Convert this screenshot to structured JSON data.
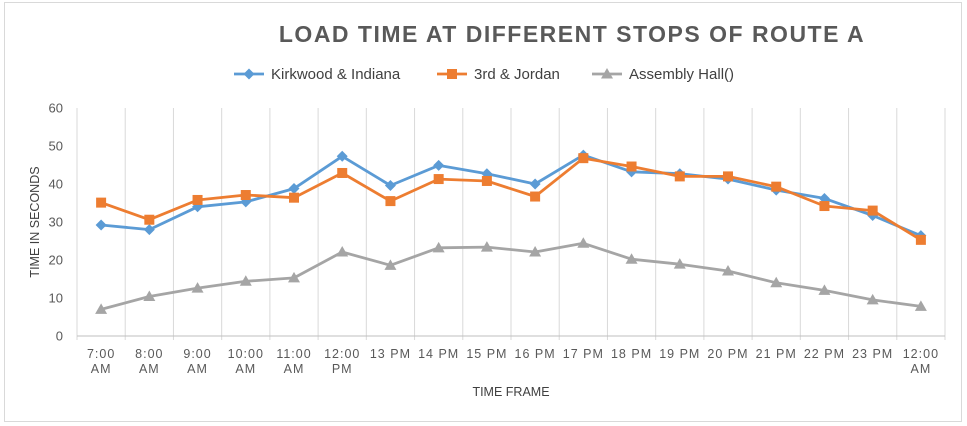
{
  "chart_data": {
    "type": "line",
    "title": "LOAD TIME AT DIFFERENT STOPS OF ROUTE A",
    "xlabel": "TIME FRAME",
    "ylabel": "TIME IN SECONDS",
    "ylim": [
      0,
      60
    ],
    "yticks": [
      "0",
      "10",
      "20",
      "30",
      "40",
      "50",
      "60"
    ],
    "grid": "vertical",
    "legend_position": "top",
    "categories": [
      [
        "7:00",
        "AM"
      ],
      [
        "8:00",
        "AM"
      ],
      [
        "9:00",
        "AM"
      ],
      [
        "10:00",
        "AM"
      ],
      [
        "11:00",
        "AM"
      ],
      [
        "12:00",
        "PM"
      ],
      [
        "13 PM"
      ],
      [
        "14 PM"
      ],
      [
        "15 PM"
      ],
      [
        "16 PM"
      ],
      [
        "17 PM"
      ],
      [
        "18 PM"
      ],
      [
        "19 PM"
      ],
      [
        "20 PM"
      ],
      [
        "21 PM"
      ],
      [
        "22 PM"
      ],
      [
        "23 PM"
      ],
      [
        "12:00",
        "AM"
      ]
    ],
    "series": [
      {
        "name": "Kirkwood & Indiana",
        "color": "#5b9bd5",
        "marker": "diamond",
        "values": [
          29.2,
          28,
          34,
          35.3,
          38.8,
          47.3,
          39.6,
          44.9,
          42.7,
          40,
          47.6,
          43.2,
          42.7,
          41.3,
          38.4,
          36.2,
          31.7,
          26.4
        ]
      },
      {
        "name": "3rd & Jordan",
        "color": "#ed7d31",
        "marker": "square",
        "values": [
          35.1,
          30.6,
          35.8,
          37.1,
          36.4,
          42.9,
          35.5,
          41.3,
          40.8,
          36.7,
          46.8,
          44.6,
          42,
          42,
          39.3,
          34.2,
          33,
          25.3
        ]
      },
      {
        "name": "Assembly Hall()",
        "color": "#a5a5a5",
        "marker": "triangle",
        "values": [
          7,
          10.4,
          12.6,
          14.4,
          15.3,
          22.1,
          18.6,
          23.2,
          23.4,
          22.1,
          24.4,
          20.2,
          18.9,
          17.1,
          14,
          12,
          9.5,
          7.8
        ]
      }
    ]
  }
}
